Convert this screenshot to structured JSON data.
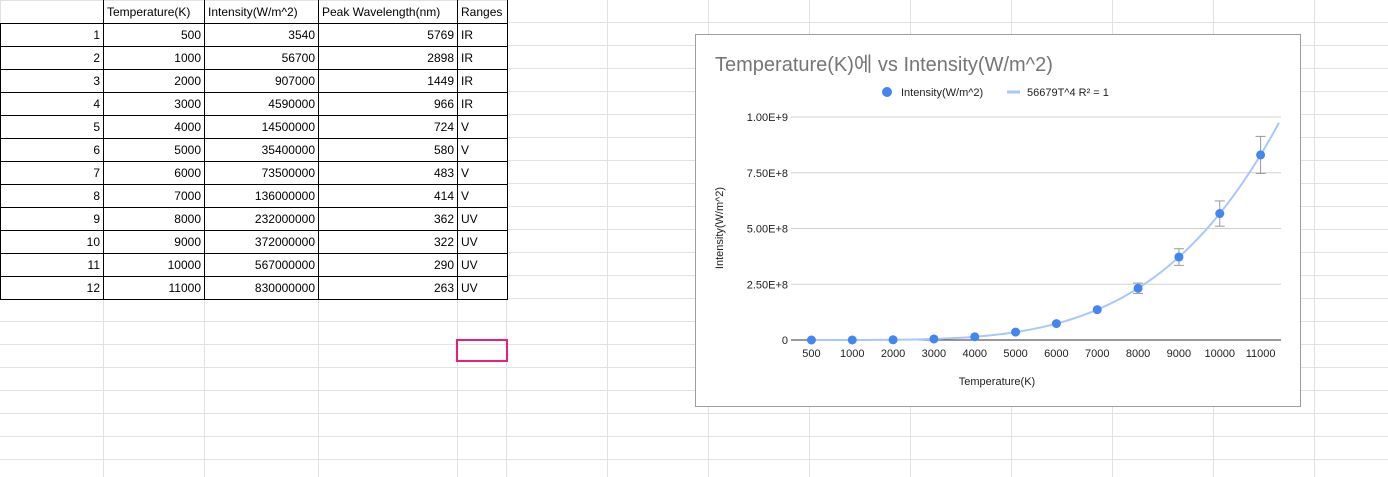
{
  "sheet": {
    "headers": [
      "Temperature(K)",
      "Intensity(W/m^2)",
      "Peak Wavelength(nm)",
      "Ranges"
    ],
    "rows": [
      {
        "index": "1",
        "temp": "500",
        "intensity": "3540",
        "wavelength": "5769",
        "range": "IR"
      },
      {
        "index": "2",
        "temp": "1000",
        "intensity": "56700",
        "wavelength": "2898",
        "range": "IR"
      },
      {
        "index": "3",
        "temp": "2000",
        "intensity": "907000",
        "wavelength": "1449",
        "range": "IR"
      },
      {
        "index": "4",
        "temp": "3000",
        "intensity": "4590000",
        "wavelength": "966",
        "range": "IR"
      },
      {
        "index": "5",
        "temp": "4000",
        "intensity": "14500000",
        "wavelength": "724",
        "range": "V"
      },
      {
        "index": "6",
        "temp": "5000",
        "intensity": "35400000",
        "wavelength": "580",
        "range": "V"
      },
      {
        "index": "7",
        "temp": "6000",
        "intensity": "73500000",
        "wavelength": "483",
        "range": "V"
      },
      {
        "index": "8",
        "temp": "7000",
        "intensity": "136000000",
        "wavelength": "414",
        "range": "V"
      },
      {
        "index": "9",
        "temp": "8000",
        "intensity": "232000000",
        "wavelength": "362",
        "range": "UV"
      },
      {
        "index": "10",
        "temp": "9000",
        "intensity": "372000000",
        "wavelength": "322",
        "range": "UV"
      },
      {
        "index": "11",
        "temp": "10000",
        "intensity": "567000000",
        "wavelength": "290",
        "range": "UV"
      },
      {
        "index": "12",
        "temp": "11000",
        "intensity": "830000000",
        "wavelength": "263",
        "range": "UV"
      }
    ]
  },
  "colors": {
    "point": "#4285f4",
    "trendline": "#a8c7fa",
    "selection": "#e91e7f",
    "gridline": "#e2e2e2"
  },
  "chart_data": {
    "type": "scatter",
    "title": "Temperature(K)에 vs Intensity(W/m^2)",
    "xlabel": "Temperature(K)",
    "ylabel": "Intensity(W/m^2)",
    "categories": [
      "500",
      "1000",
      "2000",
      "3000",
      "4000",
      "5000",
      "6000",
      "7000",
      "8000",
      "9000",
      "10000",
      "11000"
    ],
    "series": [
      {
        "name": "Intensity(W/m^2)",
        "values": [
          3540,
          56700,
          907000,
          4590000,
          14500000,
          35400000,
          73500000,
          136000000,
          232000000,
          372000000,
          567000000,
          830000000
        ],
        "error_bars_percent": 10
      }
    ],
    "trendline": {
      "label": "56679T^4 R² = 1",
      "equation": "56679T^4"
    },
    "ylim": [
      0,
      1000000000
    ],
    "yticks": [
      {
        "value": 0,
        "label": "0"
      },
      {
        "value": 250000000,
        "label": "2.50E+8"
      },
      {
        "value": 500000000,
        "label": "5.00E+8"
      },
      {
        "value": 750000000,
        "label": "7.50E+8"
      },
      {
        "value": 1000000000,
        "label": "1.00E+9"
      }
    ],
    "grid": true,
    "legend": "top-center"
  }
}
